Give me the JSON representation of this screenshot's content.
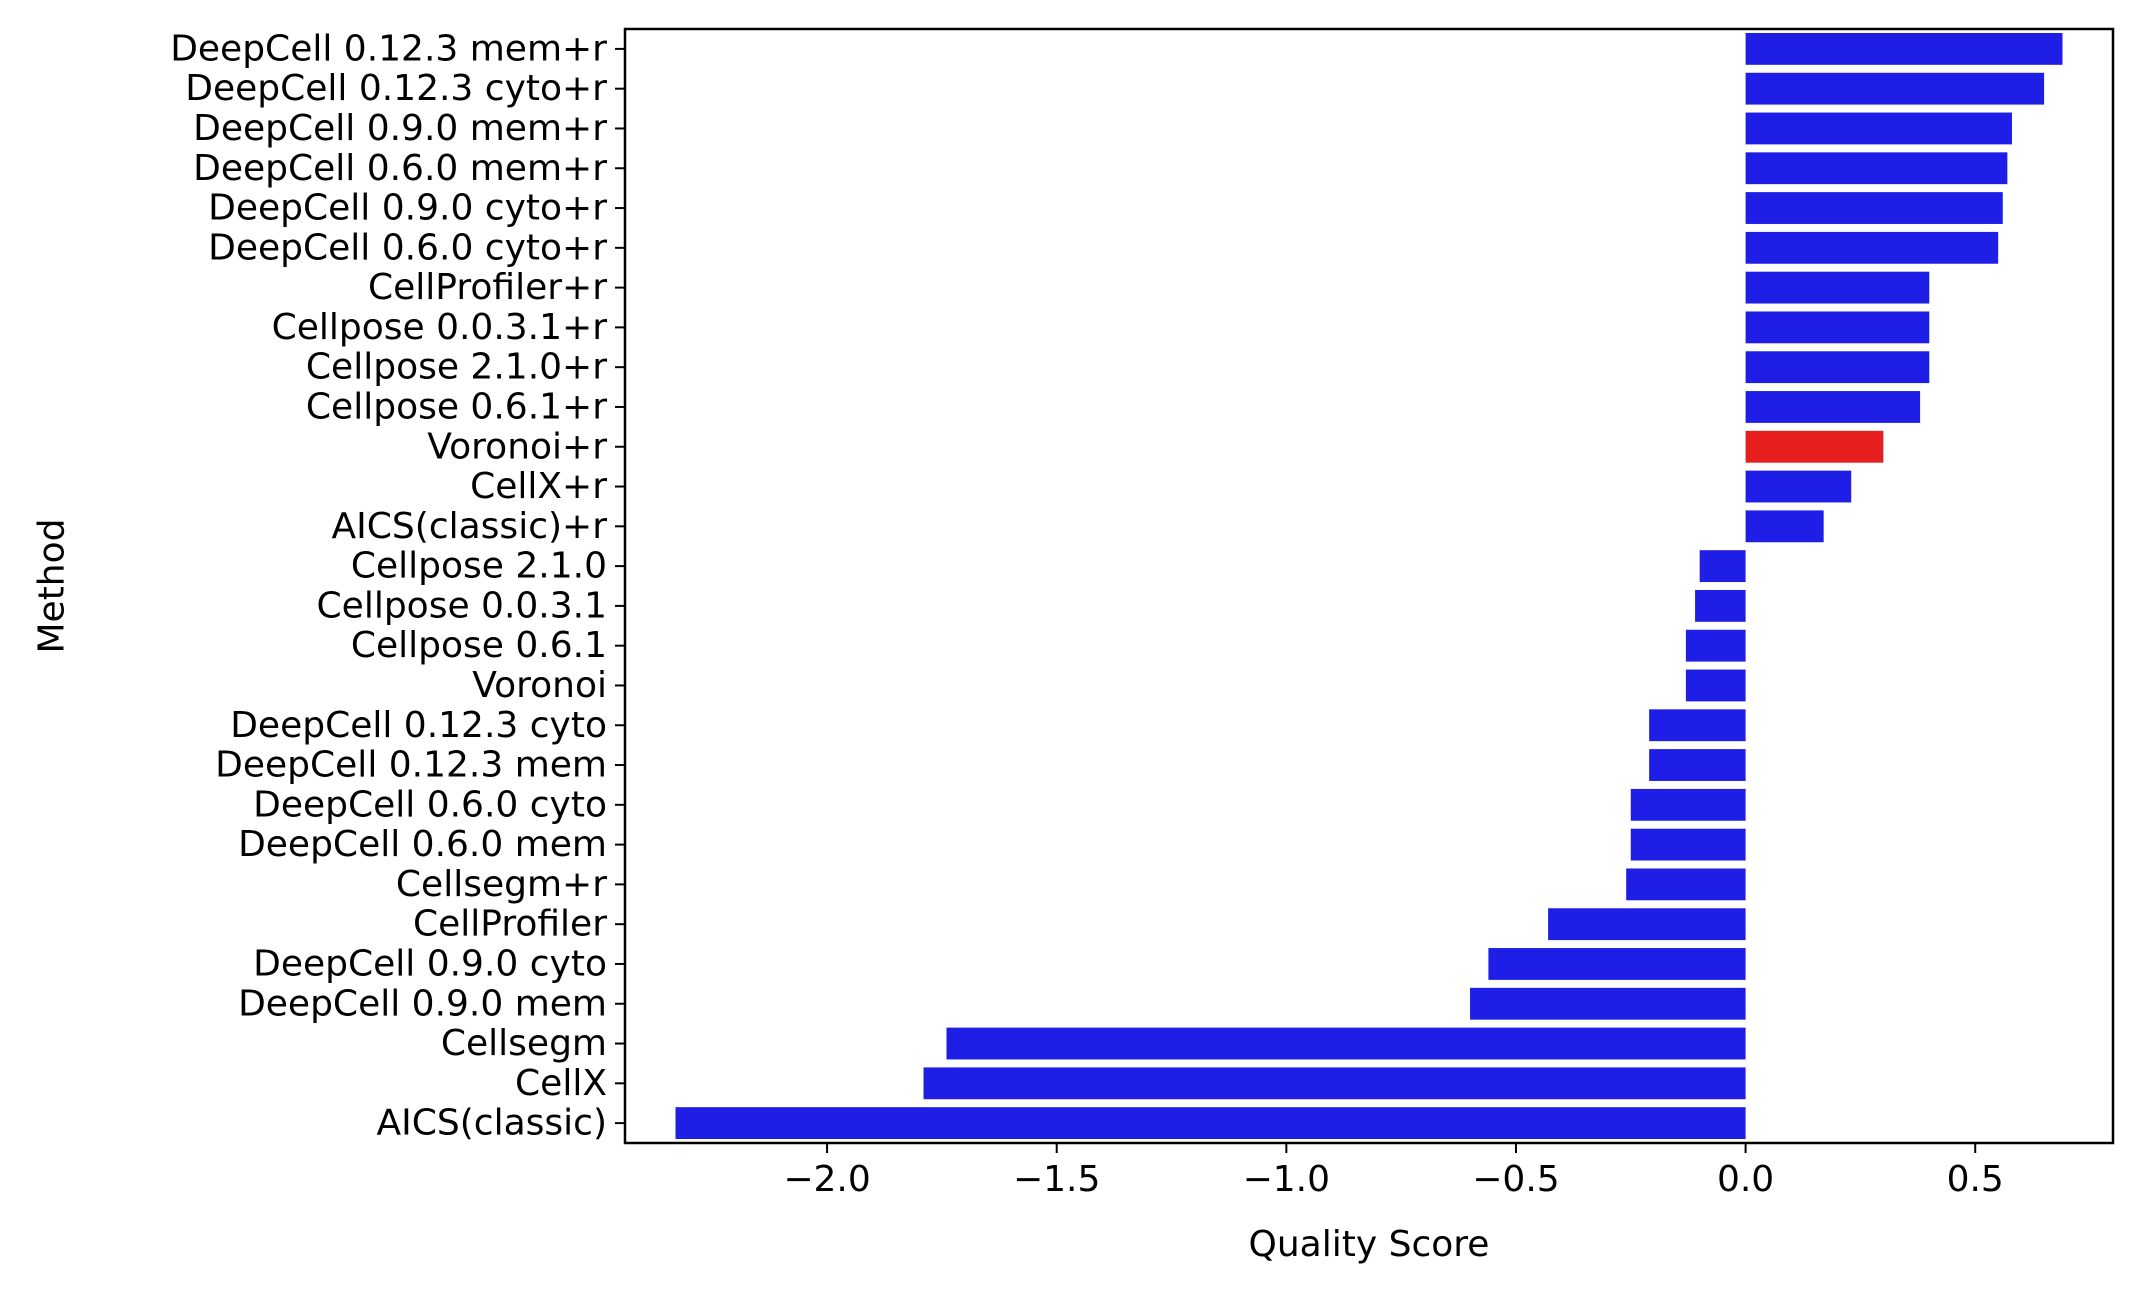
{
  "chart_data": {
    "type": "bar",
    "orientation": "horizontal",
    "xlabel": "Quality Score",
    "ylabel": "Method",
    "xlim": [
      -2.44,
      0.8
    ],
    "xticks": [
      -2.0,
      -1.5,
      -1.0,
      -0.5,
      0.0,
      0.5
    ],
    "xtick_labels": [
      "−2.0",
      "−1.5",
      "−1.0",
      "−0.5",
      "0.0",
      "0.5"
    ],
    "grid": false,
    "legend": "none",
    "categories": [
      "DeepCell 0.12.3 mem+r",
      "DeepCell 0.12.3 cyto+r",
      "DeepCell 0.9.0 mem+r",
      "DeepCell 0.6.0 mem+r",
      "DeepCell 0.9.0 cyto+r",
      "DeepCell 0.6.0 cyto+r",
      "CellProfiler+r",
      "Cellpose 0.0.3.1+r",
      "Cellpose 2.1.0+r",
      "Cellpose 0.6.1+r",
      "Voronoi+r",
      "CellX+r",
      "AICS(classic)+r",
      "Cellpose 2.1.0",
      "Cellpose 0.0.3.1",
      "Cellpose 0.6.1",
      "Voronoi",
      "DeepCell 0.12.3 cyto",
      "DeepCell 0.12.3 mem",
      "DeepCell 0.6.0 cyto",
      "DeepCell 0.6.0 mem",
      "Cellsegm+r",
      "CellProfiler",
      "DeepCell 0.9.0 cyto",
      "DeepCell 0.9.0 mem",
      "Cellsegm",
      "CellX",
      "AICS(classic)"
    ],
    "values": [
      0.69,
      0.65,
      0.58,
      0.57,
      0.56,
      0.55,
      0.4,
      0.4,
      0.4,
      0.38,
      0.3,
      0.23,
      0.17,
      -0.1,
      -0.11,
      -0.13,
      -0.13,
      -0.21,
      -0.21,
      -0.25,
      -0.25,
      -0.26,
      -0.43,
      -0.56,
      -0.6,
      -1.74,
      -1.79,
      -2.33
    ],
    "highlight_index": 10,
    "colors": {
      "bar": "#1e1ee6",
      "highlight": "#e61e1e",
      "axis": "#000000",
      "background": "#ffffff"
    }
  }
}
